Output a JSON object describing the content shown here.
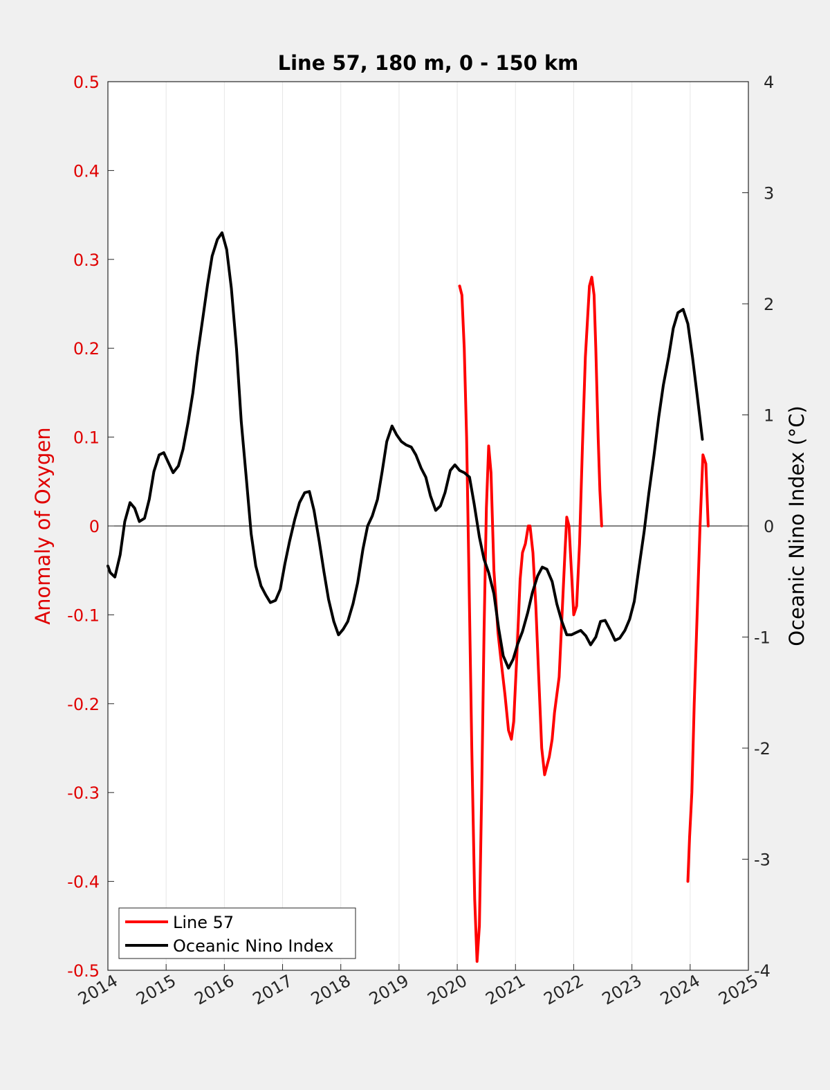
{
  "chart_data": {
    "type": "line",
    "title": "Line 57, 180 m, 0 - 150 km",
    "ylabel_left": "Anomaly of Oxygen",
    "ylabel_right": "Oceanic Nino Index (°C)",
    "xlim": [
      2014,
      2025
    ],
    "ylim_left": [
      -0.5,
      0.5
    ],
    "ylim_right": [
      -4,
      4
    ],
    "x_ticks": [
      2014,
      2015,
      2016,
      2017,
      2018,
      2019,
      2020,
      2021,
      2022,
      2023,
      2024,
      2025
    ],
    "x_tick_labels": [
      "2014",
      "2015",
      "2016",
      "2017",
      "2018",
      "2019",
      "2020",
      "2021",
      "2022",
      "2023",
      "2024",
      "2025"
    ],
    "y_left_ticks": [
      -0.5,
      -0.4,
      -0.3,
      -0.2,
      -0.1,
      0,
      0.1,
      0.2,
      0.3,
      0.4,
      0.5
    ],
    "y_left_tick_labels": [
      "-0.5",
      "-0.4",
      "-0.3",
      "-0.2",
      "-0.1",
      "0",
      "0.1",
      "0.2",
      "0.3",
      "0.4",
      "0.5"
    ],
    "y_right_ticks": [
      -4,
      -3,
      -2,
      -1,
      0,
      1,
      2,
      3,
      4
    ],
    "y_right_tick_labels": [
      "-4",
      "-3",
      "-2",
      "-1",
      "0",
      "1",
      "2",
      "3",
      "4"
    ],
    "grid": "vertical",
    "zero_line": true,
    "legend_position": "bottom-left",
    "colors": {
      "left_axis": "#e00000",
      "line57": "#ff0000",
      "oni": "#000000"
    },
    "series": [
      {
        "name": "Line 57",
        "axis": "left",
        "color": "#ff0000",
        "segments": [
          [
            [
              2020.04,
              0.27
            ],
            [
              2020.08,
              0.26
            ],
            [
              2020.12,
              0.2
            ],
            [
              2020.16,
              0.1
            ],
            [
              2020.2,
              -0.05
            ],
            [
              2020.25,
              -0.25
            ],
            [
              2020.3,
              -0.42
            ],
            [
              2020.34,
              -0.49
            ],
            [
              2020.38,
              -0.45
            ],
            [
              2020.42,
              -0.3
            ],
            [
              2020.46,
              -0.12
            ],
            [
              2020.5,
              0.02
            ],
            [
              2020.54,
              0.09
            ],
            [
              2020.58,
              0.06
            ],
            [
              2020.63,
              -0.05
            ],
            [
              2020.7,
              -0.12
            ],
            [
              2020.75,
              -0.15
            ],
            [
              2020.82,
              -0.19
            ],
            [
              2020.88,
              -0.23
            ],
            [
              2020.93,
              -0.24
            ],
            [
              2020.97,
              -0.22
            ],
            [
              2021.02,
              -0.15
            ],
            [
              2021.08,
              -0.06
            ],
            [
              2021.12,
              -0.03
            ],
            [
              2021.17,
              -0.02
            ],
            [
              2021.22,
              0.0
            ],
            [
              2021.25,
              0.0
            ],
            [
              2021.3,
              -0.03
            ],
            [
              2021.35,
              -0.09
            ],
            [
              2021.4,
              -0.17
            ],
            [
              2021.45,
              -0.25
            ],
            [
              2021.5,
              -0.28
            ],
            [
              2021.54,
              -0.27
            ],
            [
              2021.58,
              -0.26
            ],
            [
              2021.63,
              -0.24
            ],
            [
              2021.67,
              -0.21
            ],
            [
              2021.75,
              -0.17
            ],
            [
              2021.8,
              -0.1
            ],
            [
              2021.85,
              -0.03
            ],
            [
              2021.88,
              0.01
            ],
            [
              2021.92,
              0.0
            ],
            [
              2021.96,
              -0.05
            ],
            [
              2022.0,
              -0.1
            ],
            [
              2022.05,
              -0.09
            ],
            [
              2022.1,
              -0.02
            ],
            [
              2022.15,
              0.09
            ],
            [
              2022.2,
              0.19
            ],
            [
              2022.27,
              0.27
            ],
            [
              2022.31,
              0.28
            ],
            [
              2022.35,
              0.26
            ],
            [
              2022.38,
              0.2
            ],
            [
              2022.42,
              0.1
            ],
            [
              2022.45,
              0.04
            ],
            [
              2022.48,
              0.0
            ]
          ],
          [
            [
              2023.96,
              -0.4
            ],
            [
              2023.99,
              -0.35
            ],
            [
              2024.03,
              -0.3
            ],
            [
              2024.07,
              -0.2
            ],
            [
              2024.12,
              -0.1
            ],
            [
              2024.17,
              0.0
            ],
            [
              2024.22,
              0.08
            ],
            [
              2024.27,
              0.07
            ],
            [
              2024.31,
              0.0
            ]
          ]
        ]
      },
      {
        "name": "Oceanic Nino Index",
        "axis": "right",
        "color": "#000000",
        "segments": [
          [
            [
              2014.0,
              -0.36
            ],
            [
              2014.04,
              -0.42
            ],
            [
              2014.12,
              -0.46
            ],
            [
              2014.21,
              -0.26
            ],
            [
              2014.29,
              0.04
            ],
            [
              2014.38,
              0.21
            ],
            [
              2014.46,
              0.16
            ],
            [
              2014.54,
              0.04
            ],
            [
              2014.63,
              0.07
            ],
            [
              2014.71,
              0.24
            ],
            [
              2014.79,
              0.49
            ],
            [
              2014.88,
              0.64
            ],
            [
              2014.96,
              0.66
            ],
            [
              2015.04,
              0.57
            ],
            [
              2015.12,
              0.48
            ],
            [
              2015.21,
              0.54
            ],
            [
              2015.29,
              0.69
            ],
            [
              2015.38,
              0.94
            ],
            [
              2015.46,
              1.2
            ],
            [
              2015.54,
              1.54
            ],
            [
              2015.63,
              1.87
            ],
            [
              2015.71,
              2.17
            ],
            [
              2015.79,
              2.43
            ],
            [
              2015.88,
              2.58
            ],
            [
              2015.96,
              2.64
            ],
            [
              2016.04,
              2.49
            ],
            [
              2016.12,
              2.14
            ],
            [
              2016.21,
              1.59
            ],
            [
              2016.29,
              0.94
            ],
            [
              2016.38,
              0.41
            ],
            [
              2016.46,
              -0.07
            ],
            [
              2016.54,
              -0.36
            ],
            [
              2016.63,
              -0.54
            ],
            [
              2016.71,
              -0.62
            ],
            [
              2016.79,
              -0.69
            ],
            [
              2016.88,
              -0.67
            ],
            [
              2016.96,
              -0.57
            ],
            [
              2017.04,
              -0.34
            ],
            [
              2017.12,
              -0.14
            ],
            [
              2017.21,
              0.06
            ],
            [
              2017.29,
              0.21
            ],
            [
              2017.38,
              0.3
            ],
            [
              2017.46,
              0.31
            ],
            [
              2017.54,
              0.14
            ],
            [
              2017.63,
              -0.14
            ],
            [
              2017.71,
              -0.41
            ],
            [
              2017.79,
              -0.66
            ],
            [
              2017.88,
              -0.86
            ],
            [
              2017.96,
              -0.98
            ],
            [
              2018.04,
              -0.93
            ],
            [
              2018.12,
              -0.86
            ],
            [
              2018.21,
              -0.7
            ],
            [
              2018.29,
              -0.51
            ],
            [
              2018.38,
              -0.21
            ],
            [
              2018.46,
              0.0
            ],
            [
              2018.54,
              0.09
            ],
            [
              2018.63,
              0.24
            ],
            [
              2018.71,
              0.49
            ],
            [
              2018.79,
              0.76
            ],
            [
              2018.88,
              0.9
            ],
            [
              2018.96,
              0.82
            ],
            [
              2019.04,
              0.76
            ],
            [
              2019.12,
              0.73
            ],
            [
              2019.21,
              0.71
            ],
            [
              2019.29,
              0.64
            ],
            [
              2019.38,
              0.52
            ],
            [
              2019.46,
              0.44
            ],
            [
              2019.54,
              0.27
            ],
            [
              2019.63,
              0.14
            ],
            [
              2019.71,
              0.18
            ],
            [
              2019.79,
              0.3
            ],
            [
              2019.88,
              0.5
            ],
            [
              2019.96,
              0.55
            ],
            [
              2020.04,
              0.5
            ],
            [
              2020.12,
              0.48
            ],
            [
              2020.21,
              0.44
            ],
            [
              2020.29,
              0.2
            ],
            [
              2020.38,
              -0.1
            ],
            [
              2020.46,
              -0.3
            ],
            [
              2020.54,
              -0.42
            ],
            [
              2020.63,
              -0.61
            ],
            [
              2020.71,
              -0.92
            ],
            [
              2020.79,
              -1.17
            ],
            [
              2020.88,
              -1.28
            ],
            [
              2020.96,
              -1.2
            ],
            [
              2021.04,
              -1.06
            ],
            [
              2021.12,
              -0.95
            ],
            [
              2021.21,
              -0.78
            ],
            [
              2021.29,
              -0.6
            ],
            [
              2021.38,
              -0.45
            ],
            [
              2021.46,
              -0.37
            ],
            [
              2021.54,
              -0.39
            ],
            [
              2021.63,
              -0.5
            ],
            [
              2021.71,
              -0.7
            ],
            [
              2021.79,
              -0.85
            ],
            [
              2021.88,
              -0.98
            ],
            [
              2021.96,
              -0.98
            ],
            [
              2022.04,
              -0.96
            ],
            [
              2022.12,
              -0.94
            ],
            [
              2022.21,
              -0.99
            ],
            [
              2022.29,
              -1.07
            ],
            [
              2022.38,
              -1.0
            ],
            [
              2022.46,
              -0.86
            ],
            [
              2022.54,
              -0.85
            ],
            [
              2022.63,
              -0.94
            ],
            [
              2022.71,
              -1.03
            ],
            [
              2022.79,
              -1.01
            ],
            [
              2022.88,
              -0.94
            ],
            [
              2022.96,
              -0.84
            ],
            [
              2023.04,
              -0.68
            ],
            [
              2023.12,
              -0.38
            ],
            [
              2023.21,
              -0.05
            ],
            [
              2023.29,
              0.29
            ],
            [
              2023.38,
              0.64
            ],
            [
              2023.46,
              0.98
            ],
            [
              2023.54,
              1.27
            ],
            [
              2023.63,
              1.52
            ],
            [
              2023.71,
              1.78
            ],
            [
              2023.79,
              1.92
            ],
            [
              2023.88,
              1.95
            ],
            [
              2023.96,
              1.82
            ],
            [
              2024.04,
              1.52
            ],
            [
              2024.12,
              1.18
            ],
            [
              2024.21,
              0.78
            ]
          ]
        ]
      }
    ]
  }
}
